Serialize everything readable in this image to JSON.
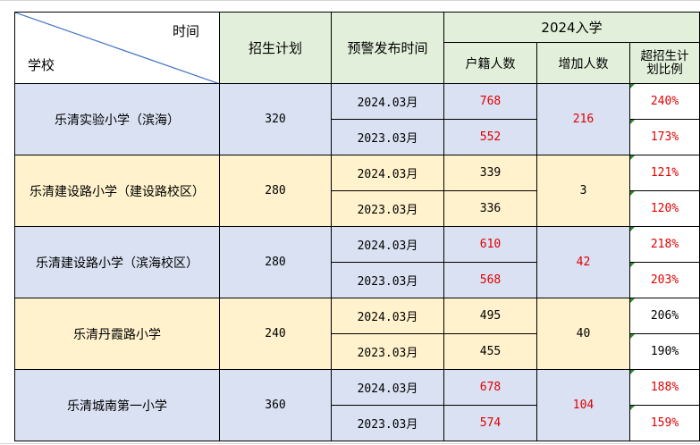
{
  "header": {
    "diag_top": "时间",
    "diag_bottom": "学校",
    "plan": "招生计划",
    "warn_time": "预警发布时间",
    "group": "2024入学",
    "hukou": "户籍人数",
    "increase": "增加人数",
    "ratio": "超招生计划比例"
  },
  "schools": [
    {
      "name": "乐清实验小学（滨海）",
      "plan": "320",
      "increase": "216",
      "increase_red": true,
      "bg": "blue",
      "rows": [
        {
          "time": "2024.03月",
          "hukou": "768",
          "ratio": "240%",
          "red": true
        },
        {
          "time": "2023.03月",
          "hukou": "552",
          "ratio": "173%",
          "red": true
        }
      ]
    },
    {
      "name": "乐清建设路小学（建设路校区）",
      "plan": "280",
      "increase": "3",
      "increase_red": false,
      "bg": "yel",
      "rows": [
        {
          "time": "2024.03月",
          "hukou": "339",
          "ratio": "121%",
          "red": false,
          "ratio_red": true
        },
        {
          "time": "2023.03月",
          "hukou": "336",
          "ratio": "120%",
          "red": false,
          "ratio_red": true
        }
      ]
    },
    {
      "name": "乐清建设路小学（滨海校区）",
      "plan": "280",
      "increase": "42",
      "increase_red": true,
      "bg": "blue",
      "rows": [
        {
          "time": "2024.03月",
          "hukou": "610",
          "ratio": "218%",
          "red": true
        },
        {
          "time": "2023.03月",
          "hukou": "568",
          "ratio": "203%",
          "red": true
        }
      ]
    },
    {
      "name": "乐清丹霞路小学",
      "plan": "240",
      "increase": "40",
      "increase_red": false,
      "bg": "yel",
      "rows": [
        {
          "time": "2024.03月",
          "hukou": "495",
          "ratio": "206%",
          "red": false
        },
        {
          "time": "2023.03月",
          "hukou": "455",
          "ratio": "190%",
          "red": false
        }
      ]
    },
    {
      "name": "乐清城南第一小学",
      "plan": "360",
      "increase": "104",
      "increase_red": true,
      "bg": "blue",
      "rows": [
        {
          "time": "2024.03月",
          "hukou": "678",
          "ratio": "188%",
          "red": true
        },
        {
          "time": "2023.03月",
          "hukou": "574",
          "ratio": "159%",
          "red": true
        }
      ]
    }
  ],
  "colors": {
    "header_bg": "#e2efda",
    "blue_bg": "#d9e1f2",
    "yellow_bg": "#fff2cc",
    "red_text": "#e00000",
    "diag_line": "#4472c4"
  }
}
